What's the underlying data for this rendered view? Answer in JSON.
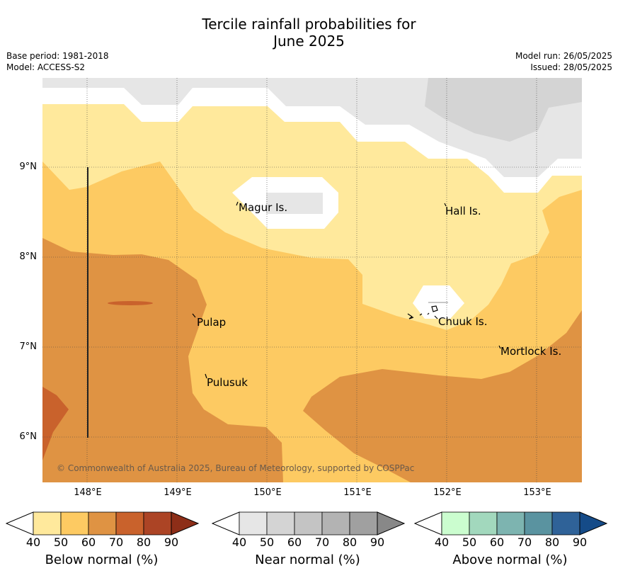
{
  "title_line1": "Tercile rainfall probabilities for",
  "title_line2": "June 2025",
  "base_period": "Base period: 1981-2018",
  "model": "Model: ACCESS-S2",
  "model_run": "Model run: 26/05/2025",
  "issued": "Issued: 28/05/2025",
  "copyright": "© Commonwealth of Australia 2025, Bureau of Meteorology, supported by COSPPac",
  "lat_labels": [
    "9°N",
    "8°N",
    "7°N",
    "6°N"
  ],
  "lon_labels": [
    "148°E",
    "149°E",
    "150°E",
    "151°E",
    "152°E",
    "153°E"
  ],
  "places": {
    "magur": "Magur Is.",
    "hall": "Hall Is.",
    "pulap": "Pulap",
    "chuuk": "Chuuk Is.",
    "mortlock": "Mortlock Is.",
    "pulusuk": "Pulusuk"
  },
  "legends": [
    {
      "title": "Below normal (%)",
      "ticks": [
        "40",
        "50",
        "60",
        "70",
        "80",
        "90"
      ],
      "colors": [
        "#ffe99c",
        "#fdca62",
        "#df9343",
        "#c9622c",
        "#ac4425",
        "#8d2e18"
      ]
    },
    {
      "title": "Near normal (%)",
      "ticks": [
        "40",
        "50",
        "60",
        "70",
        "80",
        "90"
      ],
      "colors": [
        "#e6e6e6",
        "#d4d4d4",
        "#c4c4c4",
        "#b3b3b3",
        "#a0a0a0",
        "#888888"
      ]
    },
    {
      "title": "Above normal (%)",
      "ticks": [
        "40",
        "50",
        "60",
        "70",
        "80",
        "90"
      ],
      "colors": [
        "#cbfdcf",
        "#a2d8bd",
        "#7db4b0",
        "#5a93a0",
        "#2f6298",
        "#154b88"
      ]
    }
  ],
  "colors": {
    "below_40": "#ffe99c",
    "below_50": "#fdca62",
    "below_60": "#df9343",
    "below_70": "#c9622c",
    "near_40": "#e6e6e6",
    "near_50": "#d4d4d4"
  }
}
